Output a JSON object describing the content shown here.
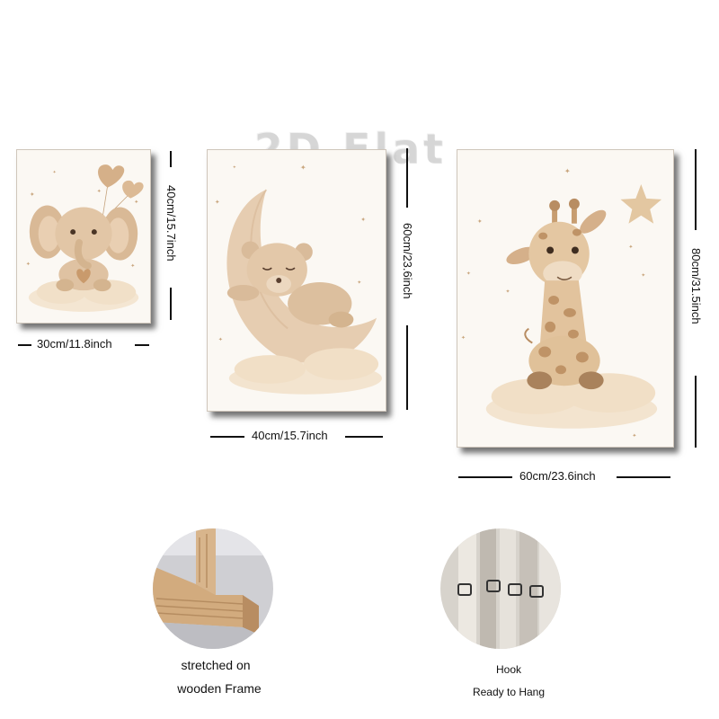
{
  "watermark": "2D Flat",
  "posters": [
    {
      "subject": "elephant",
      "width_label": "30cm/11.8inch",
      "height_label": "40cm/15.7inch"
    },
    {
      "subject": "teddy-bear-on-moon",
      "width_label": "40cm/15.7inch",
      "height_label": "60cm/23.6inch"
    },
    {
      "subject": "giraffe",
      "width_label": "60cm/23.6inch",
      "height_label": "80cm/31.5inch"
    }
  ],
  "features": [
    {
      "lines": [
        "stretched on",
        "wooden Frame"
      ]
    },
    {
      "lines": [
        "Hook",
        "Ready to Hang"
      ]
    }
  ],
  "colors": {
    "beige": "#e8d2b6",
    "brown": "#b88d62",
    "wood": "#d8b58c",
    "ink": "#111111"
  }
}
